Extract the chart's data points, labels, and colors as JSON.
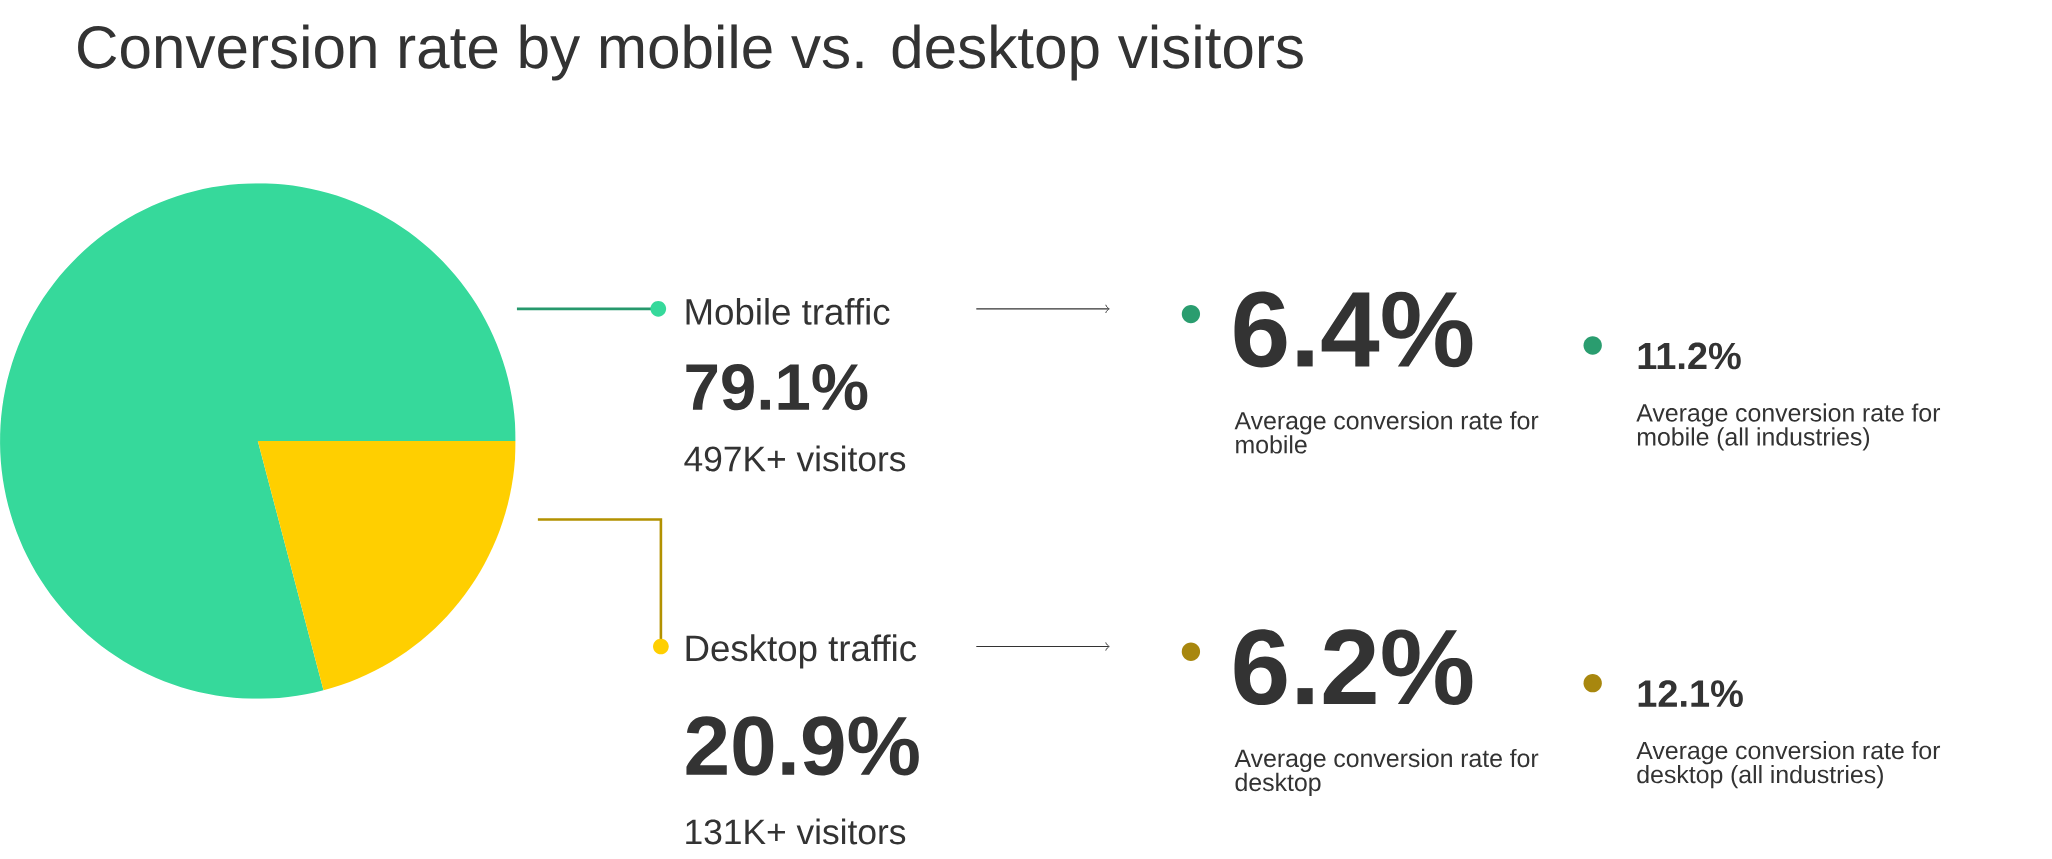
{
  "chart_data": {
    "type": "pie",
    "title": "Conversion rate by mobile vs. desktop visitors",
    "categories": [
      "Mobile traffic",
      "Desktop traffic"
    ],
    "values": [
      79.1,
      20.9
    ],
    "colors": [
      "#36d99b",
      "#ffcf00"
    ],
    "value_labels": [
      "79.1%",
      "20.9%"
    ],
    "legend": "right",
    "annotations": [
      "497K+ visitors",
      "131K+ visitors",
      "6.4%",
      "Average conversion rate for mobile",
      "11.2%",
      "Average conversion rate for mobile (all industries)",
      "6.2%",
      "Average conversion rate for desktop",
      "12.1%",
      "Average conversion rate for desktop (all industries)"
    ]
  }
}
